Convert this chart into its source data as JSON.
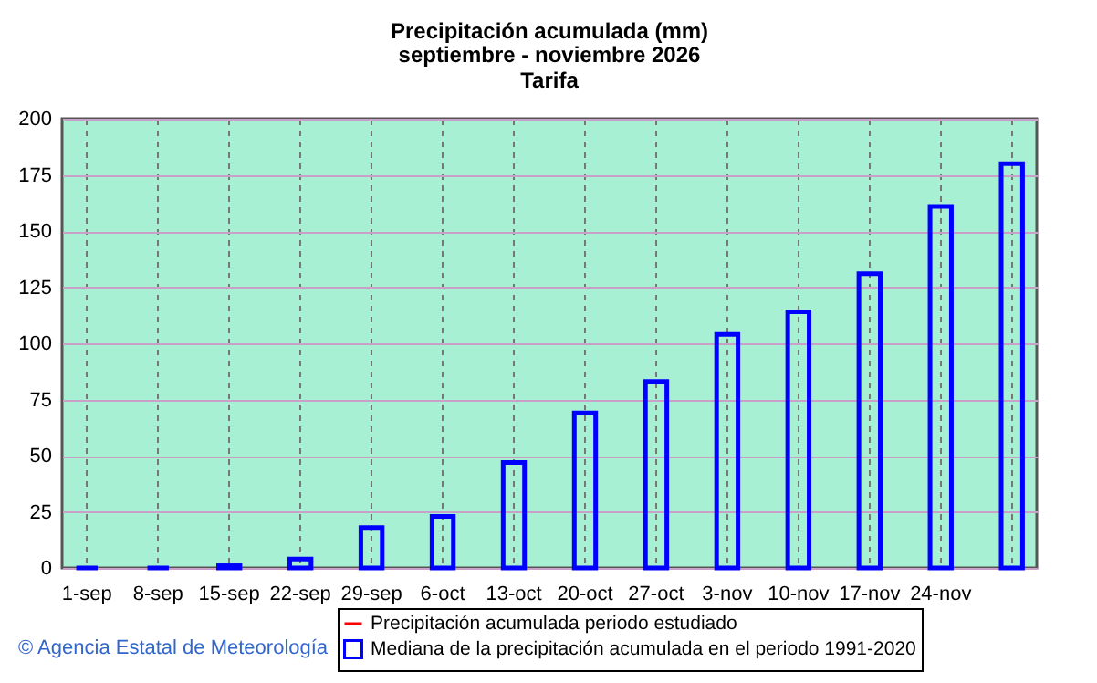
{
  "chart_data": {
    "type": "bar",
    "title": "Precipitación acumulada (mm)",
    "subtitle": "septiembre - noviembre 2026\nTarifa",
    "categories": [
      "1-sep",
      "8-sep",
      "15-sep",
      "22-sep",
      "29-sep",
      "6-oct",
      "13-oct",
      "20-oct",
      "27-oct",
      "3-nov",
      "10-nov",
      "17-nov",
      "24-nov",
      null
    ],
    "series": [
      {
        "name": "Precipitación acumulada periodo estudiado",
        "type": "line",
        "color": "#ff0000",
        "values": [
          null,
          null,
          null,
          null,
          null,
          null,
          null,
          null,
          null,
          null,
          null,
          null,
          null,
          null
        ]
      },
      {
        "name": "Mediana de la precipitación acumulada en el periodo 1991-2020",
        "color": "#0000ff",
        "values": [
          0,
          0,
          1,
          4,
          18,
          23,
          47,
          69,
          83,
          104,
          114,
          131,
          161,
          180
        ]
      }
    ],
    "ylim": [
      0,
      200
    ],
    "yticks": [
      0,
      25,
      50,
      75,
      100,
      125,
      150,
      175,
      200
    ],
    "grid": true,
    "legend": "bottom",
    "annotations": [
      "© Agencia Estatal de Meteorología"
    ]
  }
}
